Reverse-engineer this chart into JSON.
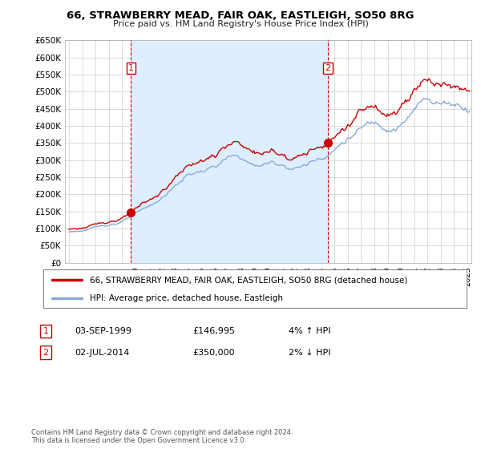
{
  "title": "66, STRAWBERRY MEAD, FAIR OAK, EASTLEIGH, SO50 8RG",
  "subtitle": "Price paid vs. HM Land Registry's House Price Index (HPI)",
  "ylim": [
    0,
    650000
  ],
  "yticks": [
    0,
    50000,
    100000,
    150000,
    200000,
    250000,
    300000,
    350000,
    400000,
    450000,
    500000,
    550000,
    600000,
    650000
  ],
  "xlim_start": 1994.7,
  "xlim_end": 2025.3,
  "transaction1": {
    "date_dec": 1999.67,
    "price": 146995,
    "label": "1"
  },
  "transaction2": {
    "date_dec": 2014.5,
    "price": 350000,
    "label": "2"
  },
  "legend_line1": "66, STRAWBERRY MEAD, FAIR OAK, EASTLEIGH, SO50 8RG (detached house)",
  "legend_line2": "HPI: Average price, detached house, Eastleigh",
  "table_row1": [
    "1",
    "03-SEP-1999",
    "£146,995",
    "4% ↑ HPI"
  ],
  "table_row2": [
    "2",
    "02-JUL-2014",
    "£350,000",
    "2% ↓ HPI"
  ],
  "footnote": "Contains HM Land Registry data © Crown copyright and database right 2024.\nThis data is licensed under the Open Government Licence v3.0.",
  "line_color_price": "#cc0000",
  "line_color_hpi": "#88aadd",
  "vline_color": "#cc0000",
  "fill_color": "#ddeeff",
  "background_color": "#ffffff",
  "grid_color": "#cccccc"
}
